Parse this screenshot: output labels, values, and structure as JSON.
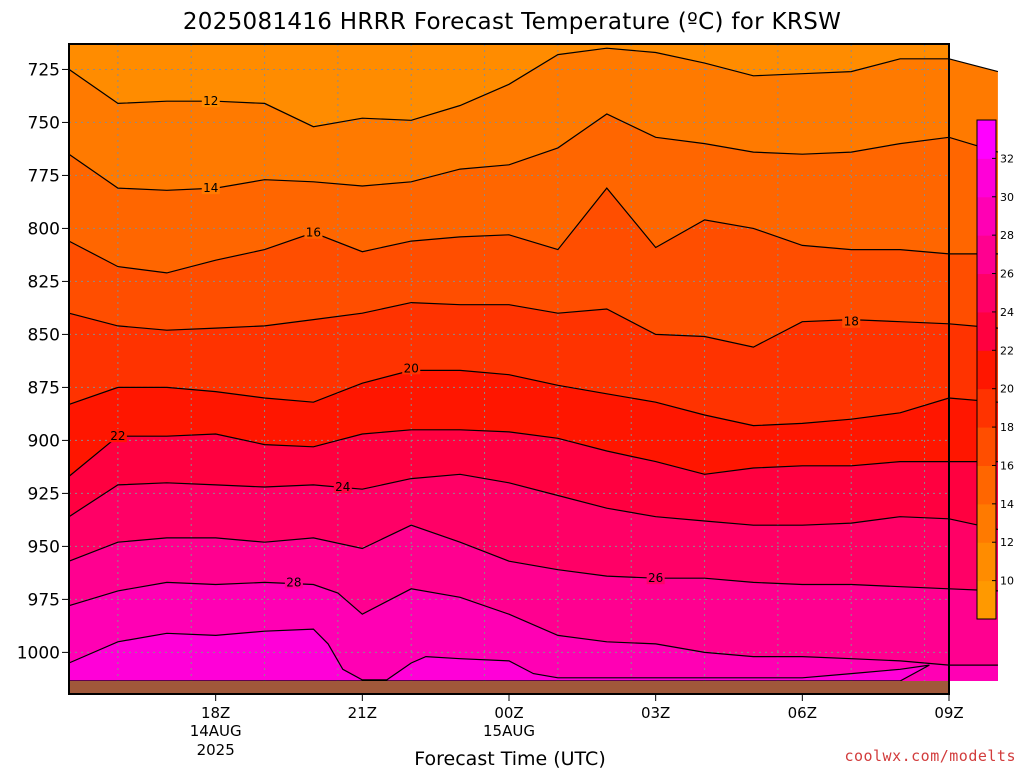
{
  "chart_data": {
    "type": "contour",
    "title": "2025081416 HRRR Forecast Temperature (ºC) for KRSW",
    "xlabel": "Forecast Time (UTC)",
    "ylabel": "",
    "credit": "coolwx.com/modelts",
    "y_axis": {
      "ticks": [
        725,
        750,
        775,
        800,
        825,
        850,
        875,
        900,
        925,
        950,
        975,
        1000
      ],
      "range": [
        1013.5,
        713
      ],
      "unit": "hPa",
      "inverted": true
    },
    "x_axis": {
      "range_hours": [
        15,
        33
      ],
      "ticks": [
        {
          "hour": 18,
          "label": "18Z",
          "sub1": "14AUG",
          "sub2": "2025"
        },
        {
          "hour": 21,
          "label": "21Z",
          "sub1": "",
          "sub2": ""
        },
        {
          "hour": 24,
          "label": "00Z",
          "sub1": "15AUG",
          "sub2": ""
        },
        {
          "hour": 27,
          "label": "03Z",
          "sub1": "",
          "sub2": ""
        },
        {
          "hour": 30,
          "label": "06Z",
          "sub1": "",
          "sub2": ""
        },
        {
          "hour": 33,
          "label": "09Z",
          "sub1": "",
          "sub2": ""
        }
      ]
    },
    "grid": true,
    "colorbar": {
      "position": "right",
      "levels": [
        8,
        10,
        12,
        14,
        16,
        18,
        20,
        22,
        24,
        26,
        28,
        30,
        32,
        34
      ],
      "labels": [
        10,
        12,
        14,
        16,
        18,
        20,
        22,
        24,
        26,
        28,
        30,
        32
      ],
      "colors": [
        "#ff9900",
        "#ff8c00",
        "#ff7a00",
        "#ff6600",
        "#ff4e00",
        "#ff3300",
        "#ff1600",
        "#ff0040",
        "#ff0066",
        "#ff0090",
        "#ff00b4",
        "#ff00d8",
        "#ff00ff"
      ]
    },
    "surface_color": "#a0583a",
    "contours": [
      {
        "level": 12,
        "label_at": [
          17.9,
          740
        ],
        "points": [
          [
            15.0,
            725
          ],
          [
            16.0,
            741
          ],
          [
            17.0,
            740
          ],
          [
            18.0,
            740
          ],
          [
            19.0,
            741
          ],
          [
            20.0,
            752
          ],
          [
            21.0,
            748
          ],
          [
            22.0,
            749
          ],
          [
            23.0,
            742
          ],
          [
            24.0,
            732
          ],
          [
            25.0,
            718
          ],
          [
            26.0,
            715
          ],
          [
            27.0,
            717
          ],
          [
            28.0,
            722
          ],
          [
            29.0,
            728
          ],
          [
            30.0,
            727
          ],
          [
            31.0,
            726
          ],
          [
            32.0,
            720
          ],
          [
            33.0,
            720
          ],
          [
            34.0,
            726
          ]
        ]
      },
      {
        "level": 14,
        "label_at": [
          17.9,
          781
        ],
        "points": [
          [
            15.0,
            765
          ],
          [
            16.0,
            781
          ],
          [
            17.0,
            782
          ],
          [
            18.0,
            781
          ],
          [
            19.0,
            777
          ],
          [
            20.0,
            778
          ],
          [
            21.0,
            780
          ],
          [
            22.0,
            778
          ],
          [
            23.0,
            772
          ],
          [
            24.0,
            770
          ],
          [
            25.0,
            762
          ],
          [
            26.0,
            746
          ],
          [
            27.0,
            757
          ],
          [
            28.0,
            760
          ],
          [
            29.0,
            764
          ],
          [
            30.0,
            765
          ],
          [
            31.0,
            764
          ],
          [
            32.0,
            760
          ],
          [
            33.0,
            757
          ],
          [
            34.0,
            764
          ]
        ]
      },
      {
        "level": 16,
        "label_at": [
          20.0,
          802
        ],
        "points": [
          [
            15.0,
            806
          ],
          [
            16.0,
            818
          ],
          [
            17.0,
            821
          ],
          [
            18.0,
            815
          ],
          [
            19.0,
            810
          ],
          [
            20.0,
            802
          ],
          [
            21.0,
            811
          ],
          [
            22.0,
            806
          ],
          [
            23.0,
            804
          ],
          [
            24.0,
            803
          ],
          [
            25.0,
            810
          ],
          [
            26.0,
            781
          ],
          [
            27.0,
            809
          ],
          [
            28.0,
            796
          ],
          [
            29.0,
            800
          ],
          [
            30.0,
            808
          ],
          [
            31.0,
            810
          ],
          [
            32.0,
            810
          ],
          [
            33.0,
            812
          ],
          [
            34.0,
            812
          ]
        ]
      },
      {
        "level": 18,
        "label_at": [
          31.0,
          844
        ],
        "points": [
          [
            15.0,
            840
          ],
          [
            16.0,
            846
          ],
          [
            17.0,
            848
          ],
          [
            18.0,
            847
          ],
          [
            19.0,
            846
          ],
          [
            20.0,
            843
          ],
          [
            21.0,
            840
          ],
          [
            22.0,
            835
          ],
          [
            23.0,
            836
          ],
          [
            24.0,
            836
          ],
          [
            25.0,
            840
          ],
          [
            26.0,
            838
          ],
          [
            27.0,
            850
          ],
          [
            28.0,
            851
          ],
          [
            29.0,
            856
          ],
          [
            30.0,
            844
          ],
          [
            31.0,
            843
          ],
          [
            32.0,
            844
          ],
          [
            33.0,
            845
          ],
          [
            34.0,
            847
          ]
        ]
      },
      {
        "level": 20,
        "label_at": [
          22.0,
          866
        ],
        "points": [
          [
            15.0,
            883
          ],
          [
            16.0,
            875
          ],
          [
            17.0,
            875
          ],
          [
            18.0,
            877
          ],
          [
            19.0,
            880
          ],
          [
            20.0,
            882
          ],
          [
            21.0,
            873
          ],
          [
            22.0,
            867
          ],
          [
            23.0,
            867
          ],
          [
            24.0,
            869
          ],
          [
            25.0,
            874
          ],
          [
            26.0,
            878
          ],
          [
            27.0,
            882
          ],
          [
            28.0,
            888
          ],
          [
            29.0,
            893
          ],
          [
            30.0,
            892
          ],
          [
            31.0,
            890
          ],
          [
            32.0,
            887
          ],
          [
            33.0,
            880
          ],
          [
            34.0,
            882
          ]
        ]
      },
      {
        "level": 22,
        "label_at": [
          16.0,
          898
        ],
        "points": [
          [
            15.0,
            917
          ],
          [
            16.0,
            898
          ],
          [
            17.0,
            898
          ],
          [
            18.0,
            897
          ],
          [
            19.0,
            902
          ],
          [
            20.0,
            903
          ],
          [
            21.0,
            897
          ],
          [
            22.0,
            895
          ],
          [
            23.0,
            895
          ],
          [
            24.0,
            896
          ],
          [
            25.0,
            899
          ],
          [
            26.0,
            905
          ],
          [
            27.0,
            910
          ],
          [
            28.0,
            916
          ],
          [
            29.0,
            913
          ],
          [
            30.0,
            912
          ],
          [
            31.0,
            912
          ],
          [
            32.0,
            910
          ],
          [
            33.0,
            910
          ],
          [
            34.0,
            910
          ]
        ]
      },
      {
        "level": 24,
        "label_at": [
          20.6,
          922
        ],
        "points": [
          [
            15.0,
            936
          ],
          [
            16.0,
            921
          ],
          [
            17.0,
            920
          ],
          [
            18.0,
            921
          ],
          [
            19.0,
            922
          ],
          [
            20.0,
            921
          ],
          [
            21.0,
            923
          ],
          [
            22.0,
            918
          ],
          [
            23.0,
            916
          ],
          [
            24.0,
            920
          ],
          [
            25.0,
            926
          ],
          [
            26.0,
            932
          ],
          [
            27.0,
            936
          ],
          [
            28.0,
            938
          ],
          [
            29.0,
            940
          ],
          [
            30.0,
            940
          ],
          [
            31.0,
            939
          ],
          [
            32.0,
            936
          ],
          [
            33.0,
            937
          ],
          [
            34.0,
            942
          ]
        ]
      },
      {
        "level": 26,
        "label_at": [
          27.0,
          965
        ],
        "points": [
          [
            15.0,
            957
          ],
          [
            16.0,
            948
          ],
          [
            17.0,
            946
          ],
          [
            18.0,
            946
          ],
          [
            19.0,
            948
          ],
          [
            20.0,
            946
          ],
          [
            21.0,
            951
          ],
          [
            22.0,
            940
          ],
          [
            23.0,
            948
          ],
          [
            24.0,
            957
          ],
          [
            25.0,
            961
          ],
          [
            26.0,
            964
          ],
          [
            27.0,
            965
          ],
          [
            28.0,
            965
          ],
          [
            29.0,
            967
          ],
          [
            30.0,
            968
          ],
          [
            31.0,
            968
          ],
          [
            32.0,
            969
          ],
          [
            33.0,
            970
          ],
          [
            34.0,
            971
          ]
        ]
      },
      {
        "level": 28,
        "label_at": [
          19.6,
          967
        ],
        "points": [
          [
            15.0,
            978
          ],
          [
            16.0,
            971
          ],
          [
            17.0,
            967
          ],
          [
            18.0,
            968
          ],
          [
            19.0,
            967
          ],
          [
            20.0,
            968
          ],
          [
            20.5,
            972
          ],
          [
            21.0,
            982
          ],
          [
            22.0,
            970
          ],
          [
            23.0,
            974
          ],
          [
            24.0,
            982
          ],
          [
            25.0,
            992
          ],
          [
            26.0,
            995
          ],
          [
            27.0,
            996
          ],
          [
            28.0,
            1000
          ],
          [
            29.0,
            1002
          ],
          [
            30.0,
            1002
          ],
          [
            31.0,
            1003
          ],
          [
            32.0,
            1004
          ],
          [
            33.0,
            1006
          ],
          [
            34.0,
            1006
          ]
        ]
      },
      {
        "level": 30,
        "label_at": null,
        "points": [
          [
            15.0,
            1005
          ],
          [
            16.0,
            995
          ],
          [
            17.0,
            991
          ],
          [
            18.0,
            992
          ],
          [
            19.0,
            990
          ],
          [
            20.0,
            989
          ],
          [
            20.3,
            996
          ],
          [
            20.6,
            1008
          ],
          [
            21.0,
            1013
          ],
          [
            21.5,
            1013
          ],
          [
            22.0,
            1005
          ],
          [
            22.3,
            1002
          ],
          [
            23.0,
            1003
          ],
          [
            24.0,
            1004
          ],
          [
            24.5,
            1010
          ],
          [
            25.0,
            1012
          ],
          [
            26.0,
            1012
          ],
          [
            27.0,
            1012
          ],
          [
            28.0,
            1012
          ],
          [
            29.0,
            1012
          ],
          [
            30.0,
            1012
          ],
          [
            31.0,
            1010
          ],
          [
            32.0,
            1008
          ],
          [
            32.6,
            1006
          ],
          [
            32.0,
            1013.5
          ],
          [
            15.0,
            1013.5
          ]
        ]
      }
    ]
  }
}
